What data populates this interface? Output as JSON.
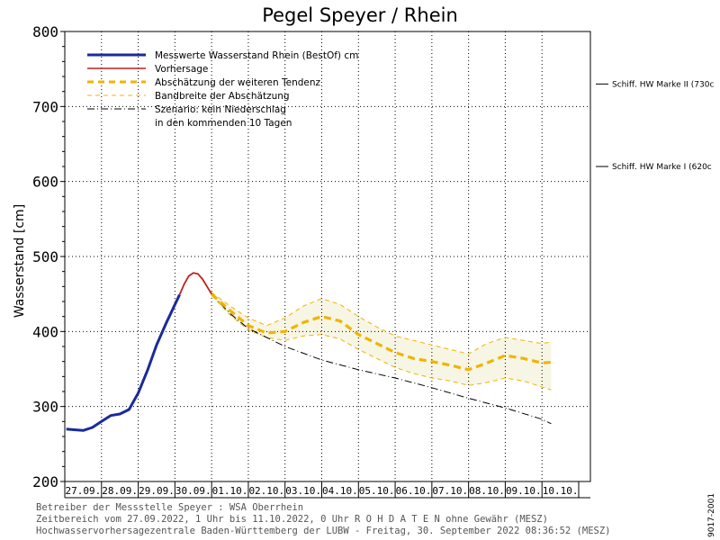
{
  "chart_data": {
    "type": "line",
    "title": "Pegel Speyer / Rhein",
    "ylabel": "Wasserstand [cm]",
    "xlabel": "",
    "ylim": [
      200,
      800
    ],
    "yticks": [
      200,
      300,
      400,
      500,
      600,
      700,
      800
    ],
    "x_start": "27.09.2022 00:00",
    "x_end": "11.10.2022 00:00",
    "date_labels": [
      "27.09.",
      "28.09.",
      "29.09.",
      "30.09.",
      "01.10.",
      "02.10.",
      "03.10.",
      "04.10.",
      "05.10.",
      "06.10.",
      "07.10.",
      "08.10.",
      "09.10.",
      "10.10."
    ],
    "grid": true,
    "legend_position": "top-left",
    "series": [
      {
        "name": "Messwerte Wasserstand Rhein (BestOf)   cm",
        "color": "#1a2a9c",
        "style": "solid-thick",
        "points": [
          [
            "27.09. 01:00",
            270
          ],
          [
            "27.09. 06:00",
            269
          ],
          [
            "27.09. 12:00",
            268
          ],
          [
            "27.09. 18:00",
            272
          ],
          [
            "28.09. 00:00",
            280
          ],
          [
            "28.09. 06:00",
            288
          ],
          [
            "28.09. 12:00",
            290
          ],
          [
            "28.09. 18:00",
            296
          ],
          [
            "29.09. 00:00",
            318
          ],
          [
            "29.09. 06:00",
            348
          ],
          [
            "29.09. 12:00",
            382
          ],
          [
            "29.09. 18:00",
            410
          ],
          [
            "30.09. 00:00",
            436
          ],
          [
            "30.09. 03:00",
            449
          ]
        ]
      },
      {
        "name": "Vorhersage",
        "color": "#c0201a",
        "style": "solid",
        "points": [
          [
            "30.09. 03:00",
            449
          ],
          [
            "30.09. 06:00",
            463
          ],
          [
            "30.09. 09:00",
            474
          ],
          [
            "30.09. 12:00",
            478
          ],
          [
            "30.09. 15:00",
            477
          ],
          [
            "30.09. 18:00",
            470
          ],
          [
            "30.09. 21:00",
            460
          ],
          [
            "01.10. 00:00",
            450
          ]
        ]
      },
      {
        "name": "Abschätzung der weiteren Tendenz",
        "color": "#f0b400",
        "style": "dashed-thick",
        "points": [
          [
            "01.10. 00:00",
            450
          ],
          [
            "01.10. 12:00",
            428
          ],
          [
            "02.10. 00:00",
            408
          ],
          [
            "02.10. 12:00",
            398
          ],
          [
            "03.10. 00:00",
            400
          ],
          [
            "03.10. 12:00",
            412
          ],
          [
            "04.10. 00:00",
            420
          ],
          [
            "04.10. 12:00",
            414
          ],
          [
            "05.10. 00:00",
            396
          ],
          [
            "05.10. 12:00",
            384
          ],
          [
            "06.10. 00:00",
            372
          ],
          [
            "06.10. 12:00",
            364
          ],
          [
            "07.10. 00:00",
            360
          ],
          [
            "07.10. 12:00",
            355
          ],
          [
            "08.10. 00:00",
            349
          ],
          [
            "08.10. 12:00",
            358
          ],
          [
            "09.10. 00:00",
            368
          ],
          [
            "09.10. 12:00",
            364
          ],
          [
            "10.10. 00:00",
            358
          ],
          [
            "10.10. 06:00",
            359
          ]
        ]
      },
      {
        "name": "Bandbreite der Abschätzung",
        "color": "#f0b400",
        "style": "dashed-thin-band",
        "upper": [
          [
            "01.10. 00:00",
            452
          ],
          [
            "01.10. 12:00",
            434
          ],
          [
            "02.10. 00:00",
            418
          ],
          [
            "02.10. 12:00",
            408
          ],
          [
            "03.10. 00:00",
            418
          ],
          [
            "03.10. 12:00",
            434
          ],
          [
            "04.10. 00:00",
            444
          ],
          [
            "04.10. 12:00",
            436
          ],
          [
            "05.10. 00:00",
            420
          ],
          [
            "05.10. 12:00",
            406
          ],
          [
            "06.10. 00:00",
            394
          ],
          [
            "06.10. 12:00",
            388
          ],
          [
            "07.10. 00:00",
            382
          ],
          [
            "07.10. 12:00",
            376
          ],
          [
            "08.10. 00:00",
            370
          ],
          [
            "08.10. 12:00",
            384
          ],
          [
            "09.10. 00:00",
            392
          ],
          [
            "09.10. 12:00",
            388
          ],
          [
            "10.10. 00:00",
            384
          ],
          [
            "10.10. 06:00",
            386
          ]
        ],
        "lower": [
          [
            "01.10. 00:00",
            448
          ],
          [
            "01.10. 12:00",
            422
          ],
          [
            "02.10. 00:00",
            402
          ],
          [
            "02.10. 12:00",
            392
          ],
          [
            "03.10. 00:00",
            388
          ],
          [
            "03.10. 12:00",
            394
          ],
          [
            "04.10. 00:00",
            396
          ],
          [
            "04.10. 12:00",
            390
          ],
          [
            "05.10. 00:00",
            376
          ],
          [
            "05.10. 12:00",
            364
          ],
          [
            "06.10. 00:00",
            352
          ],
          [
            "06.10. 12:00",
            344
          ],
          [
            "07.10. 00:00",
            338
          ],
          [
            "07.10. 12:00",
            334
          ],
          [
            "08.10. 00:00",
            328
          ],
          [
            "08.10. 12:00",
            332
          ],
          [
            "09.10. 00:00",
            338
          ],
          [
            "09.10. 12:00",
            334
          ],
          [
            "10.10. 00:00",
            326
          ],
          [
            "10.10. 06:00",
            322
          ]
        ]
      },
      {
        "name": "Szenario: kein Niederschlag\nin den kommenden 10 Tagen",
        "color": "#000000",
        "style": "dash-dot",
        "points": [
          [
            "01.10. 00:00",
            450
          ],
          [
            "01.10. 12:00",
            424
          ],
          [
            "02.10. 00:00",
            404
          ],
          [
            "02.10. 12:00",
            392
          ],
          [
            "03.10. 00:00",
            380
          ],
          [
            "04.10. 00:00",
            362
          ],
          [
            "05.10. 00:00",
            349
          ],
          [
            "06.10. 00:00",
            338
          ],
          [
            "07.10. 00:00",
            325
          ],
          [
            "08.10. 00:00",
            311
          ],
          [
            "09.10. 00:00",
            298
          ],
          [
            "10.10. 00:00",
            283
          ],
          [
            "10.10. 06:00",
            277
          ]
        ]
      }
    ],
    "reference_lines": [
      {
        "label": "Schiff. HW Marke II (730c",
        "value": 730
      },
      {
        "label": "Schiff. HW Marke I (620c",
        "value": 620
      }
    ]
  },
  "legend": {
    "measured": "Messwerte Wasserstand Rhein (BestOf)   cm",
    "forecast": "Vorhersage",
    "tendency": "Abschätzung der weiteren Tendenz",
    "band": "Bandbreite der Abschätzung",
    "scenario_line1": "Szenario: kein Niederschlag",
    "scenario_line2": "in den kommenden 10 Tagen"
  },
  "footer": {
    "line1": "Betreiber der Messstelle Speyer : WSA Oberrhein",
    "line2": "Zeitbereich vom 27.09.2022, 1 Uhr bis 11.10.2022, 0 Uhr   R O H D A T E N ohne Gewähr (MESZ)",
    "line3": "Hochwasservorhersagezentrale Baden-Württemberg der LUBW - Freitag, 30. September 2022 08:36:52 (MESZ)"
  },
  "code": "9017-2001",
  "colors": {
    "measured": "#1a2a9c",
    "forecast": "#c0201a",
    "tendency": "#f0b400",
    "band_fill": "#f7f5e3",
    "scenario": "#000000"
  }
}
